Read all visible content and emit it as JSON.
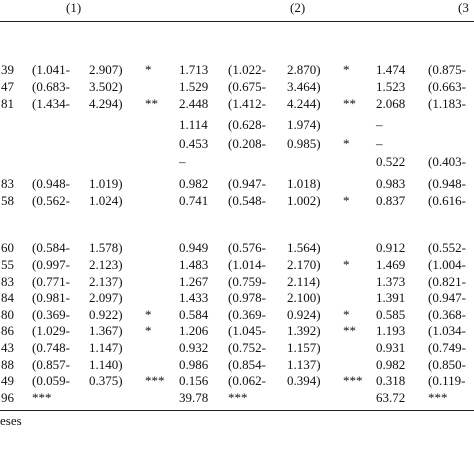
{
  "table": {
    "header": [
      "(1)",
      "(2)",
      "(3"
    ],
    "rows": [
      [
        "39",
        "(1.041-",
        "2.907)",
        "*",
        "1.713",
        "(1.022-",
        "2.870)",
        "*",
        "1.474",
        "(0.875-"
      ],
      [
        "47",
        "(0.683-",
        "3.502)",
        null,
        "1.529",
        "(0.675-",
        "3.464)",
        null,
        "1.523",
        "(0.663-"
      ],
      [
        "81",
        "(1.434-",
        "4.294)",
        "**",
        "2.448",
        "(1.412-",
        "4.244)",
        "**",
        "2.068",
        "(1.183-"
      ],
      [
        null,
        null,
        null,
        null,
        "1.114",
        "(0.628-",
        "1.974)",
        null,
        "–",
        null
      ],
      [
        null,
        null,
        null,
        null,
        "0.453",
        "(0.208-",
        "0.985)",
        "*",
        "–",
        null
      ],
      [
        null,
        null,
        null,
        null,
        "–",
        null,
        null,
        null,
        "0.522",
        "(0.403-"
      ],
      [
        "83",
        "(0.948-",
        "1.019)",
        null,
        "0.982",
        "(0.947-",
        "1.018)",
        null,
        "0.983",
        "(0.948-"
      ],
      [
        "58",
        "(0.562-",
        "1.024)",
        null,
        "0.741",
        "(0.548-",
        "1.002)",
        "*",
        "0.837",
        "(0.616-"
      ],
      [
        "60",
        "(0.584-",
        "1.578)",
        null,
        "0.949",
        "(0.576-",
        "1.564)",
        null,
        "0.912",
        "(0.552-"
      ],
      [
        "55",
        "(0.997-",
        "2.123)",
        null,
        "1.483",
        "(1.014-",
        "2.170)",
        "*",
        "1.469",
        "(1.004-"
      ],
      [
        "83",
        "(0.771-",
        "2.137)",
        null,
        "1.267",
        "(0.759-",
        "2.114)",
        null,
        "1.373",
        "(0.821-"
      ],
      [
        "84",
        "(0.981-",
        "2.097)",
        null,
        "1.433",
        "(0.978-",
        "2.100)",
        null,
        "1.391",
        "(0.947-"
      ],
      [
        "80",
        "(0.369-",
        "0.922)",
        "*",
        "0.584",
        "(0.369-",
        "0.924)",
        "*",
        "0.585",
        "(0.368-"
      ],
      [
        "86",
        "(1.029-",
        "1.367)",
        "*",
        "1.206",
        "(1.045-",
        "1.392)",
        "**",
        "1.193",
        "(1.034-"
      ],
      [
        "43",
        "(0.748-",
        "1.147)",
        null,
        "0.932",
        "(0.752-",
        "1.157)",
        null,
        "0.931",
        "(0.749-"
      ],
      [
        "88",
        "(0.857-",
        "1.140)",
        null,
        "0.986",
        "(0.854-",
        "1.137)",
        null,
        "0.982",
        "(0.850-"
      ],
      [
        "49",
        "(0.059-",
        "0.375)",
        "***",
        "0.156",
        "(0.062-",
        "0.394)",
        "***",
        "0.318",
        "(0.119-"
      ],
      [
        "96",
        "***",
        null,
        null,
        "39.78",
        "***",
        null,
        null,
        "63.72",
        "***"
      ]
    ]
  },
  "footer": {
    "note": "eses"
  }
}
